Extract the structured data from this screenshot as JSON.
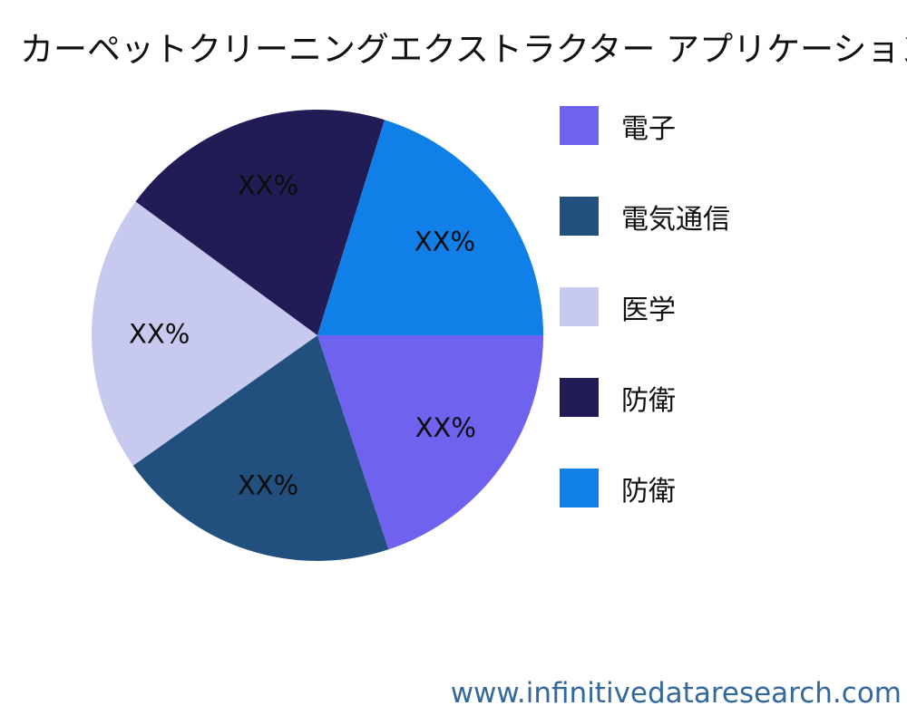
{
  "chart_data": {
    "type": "pie",
    "title": "カーペットクリーニングエクストラクター アプリケーション",
    "start_angle_deg": 0,
    "direction": "clockwise",
    "legend_position": "right",
    "slice_value_label_text": "XX%",
    "slices": [
      {
        "label": "電子",
        "display_value": "XX%",
        "percent_est": 19.9,
        "color": "#6E62EE"
      },
      {
        "label": "電気通信",
        "display_value": "XX%",
        "percent_est": 20.3,
        "color": "#21507E"
      },
      {
        "label": "医学",
        "display_value": "XX%",
        "percent_est": 19.9,
        "color": "#C7CAEE"
      },
      {
        "label": "防衛",
        "display_value": "XX%",
        "percent_est": 19.7,
        "color": "#211C55"
      },
      {
        "label": "防衛",
        "display_value": "XX%",
        "percent_est": 20.2,
        "color": "#117FE8"
      }
    ]
  },
  "footer": {
    "url": "www.infinitivedataresearch.com",
    "color": "#32689C"
  }
}
